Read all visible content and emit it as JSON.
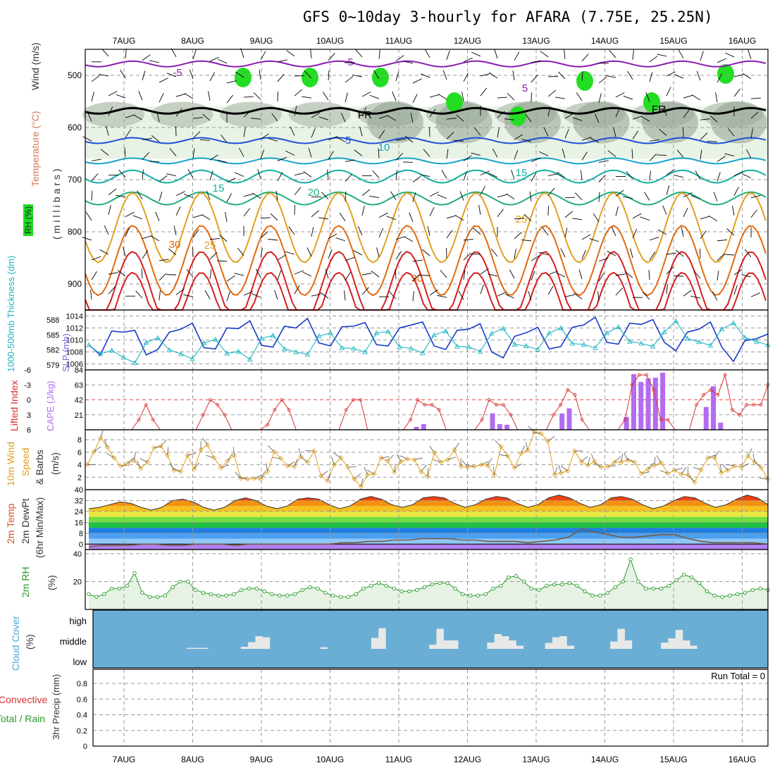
{
  "title": "GFS 0~10day 3-hourly for AFARA (7.75E, 25.25N)",
  "dates": [
    "7AUG",
    "8AUG",
    "9AUG",
    "10AUG",
    "11AUG",
    "12AUG",
    "13AUG",
    "14AUG",
    "15AUG",
    "16AUG"
  ],
  "colors": {
    "wind_barb": "#000000",
    "temp_neg": "#8a1bb0",
    "freezing": "#000000",
    "temp_5": "#1f4fd8",
    "temp_10": "#19a3c8",
    "temp_15": "#11b0a0",
    "temp_20": "#1fae7a",
    "temp_25": "#e0a020",
    "temp_30": "#e06a10",
    "temp_hot": "#d62020",
    "rh_light": "#e8f3e6",
    "rh_mid": "#c0ccbe",
    "rh_dark": "#90a090",
    "rh_sat": "#22dd22",
    "slp": "#1a3bc8",
    "thickness": "#1fb5c5",
    "lifted_index": "#d83030",
    "cape": "#b36bf0",
    "wind10": "#e0a020",
    "rh2m": "#2a9a2a",
    "cloud_bg": "#6aaed6",
    "cloud_bar": "#e8e8e8"
  },
  "panels": {
    "upper": {
      "ylabel": "(millibars)",
      "legend": [
        "RH (%)",
        "Temperature (°C)",
        "Wind (m/s)"
      ],
      "contour_labels": [
        "-5",
        "10",
        "30",
        "FR",
        "5",
        "10",
        "15",
        "20",
        "25",
        "30"
      ]
    },
    "slp": {
      "left_label": "1000-500mb Thickness (dm)",
      "right_label": "SLP (mb)"
    },
    "cape": {
      "left_label": "Lifted Index",
      "right_label": "CAPE (J/kg)"
    },
    "wind10": {
      "labels": [
        "10m Wind",
        "Speed",
        "& Barbs"
      ],
      "unit": "(m/s)"
    },
    "temp2m": {
      "labels": [
        "2m Temp",
        "2m DewPt",
        "(6hr Min/Max)"
      ],
      "unit": "(°C)"
    },
    "rh2m": {
      "label": "2m RH",
      "unit": "(%)"
    },
    "cloud": {
      "label": "Cloud Cover",
      "unit": "(%)",
      "levels": [
        "high",
        "middle",
        "low"
      ]
    },
    "precip": {
      "labels": [
        "Total / Rain",
        "Convective"
      ],
      "ylabel": "3hr Precip (mm)",
      "run_total": "Run Total = 0"
    }
  },
  "chart_data": [
    {
      "type": "contour",
      "name": "upper-air",
      "x_range": [
        "6AUG 12Z",
        "16AUG 06Z"
      ],
      "ylim_mb": [
        950,
        450
      ],
      "y_ticks": [
        "500",
        "600",
        "700",
        "800",
        "900"
      ],
      "temperature_levels_C": [
        -5,
        0,
        5,
        10,
        15,
        20,
        25,
        30
      ],
      "temperature_lines": [
        {
          "t": -5,
          "mb": 478
        },
        {
          "t": 0,
          "mb": 568
        },
        {
          "t": 5,
          "mb": 625
        },
        {
          "t": 10,
          "mb": 664
        },
        {
          "t": 15,
          "mb": 694
        },
        {
          "t": 20,
          "mb": 736
        },
        {
          "t": 25,
          "mb": 792
        },
        {
          "t": 30,
          "mb": 855
        },
        {
          "t": 35,
          "mb": 905
        },
        {
          "t": 40,
          "mb": 945
        }
      ],
      "rh_labels": [
        "10",
        "30",
        "50"
      ]
    },
    {
      "type": "line",
      "name": "slp-thickness",
      "slp_ticks": [
        "1006",
        "1008",
        "1010",
        "1012",
        "1014"
      ],
      "slp_ylim": [
        1005,
        1015
      ],
      "thickness_ticks": [
        "579",
        "582",
        "585",
        "588"
      ],
      "thickness_ylim": [
        578,
        590
      ],
      "slp_mb": [
        1009.2,
        1007.5,
        1011.5,
        1011.3,
        1011.6,
        1007.5,
        1008.4,
        1011.3,
        1011.8,
        1012.8,
        1008.7,
        1008.5,
        1012.0,
        1011.9,
        1013.2,
        1009.1,
        1008.8,
        1012.3,
        1012.0,
        1013.6,
        1009.5,
        1009.0,
        1012.2,
        1012.3,
        1012.9,
        1009.2,
        1009.0,
        1012.0,
        1012.5,
        1013.0,
        1009.0,
        1008.4,
        1011.6,
        1011.8,
        1012.7,
        1008.0,
        1007.0,
        1010.6,
        1011.2,
        1012.1,
        1008.5,
        1008.9,
        1012.1,
        1012.5,
        1013.8,
        1009.6,
        1009.3,
        1012.8,
        1012.6,
        1013.4,
        1009.6,
        1008.2,
        1011.3,
        1011.8,
        1013.0,
        1008.8,
        1006.4,
        1009.9,
        1010.2,
        1011.0
      ],
      "thickness_dm": [
        583.0,
        581.2,
        581.9,
        580.5,
        579.4,
        583.5,
        584.4,
        582.0,
        581.2,
        580.2,
        583.4,
        584.1,
        581.3,
        581.7,
        580.1,
        584.3,
        584.9,
        582.2,
        581.6,
        581.1,
        584.8,
        585.4,
        582.4,
        582.3,
        581.6,
        585.4,
        585.7,
        582.6,
        582.3,
        581.4,
        585.0,
        585.8,
        582.7,
        582.6,
        581.7,
        585.3,
        586.3,
        583.1,
        582.8,
        582.1,
        585.4,
        586.4,
        583.3,
        583.1,
        582.4,
        585.4,
        586.6,
        583.7,
        583.3,
        582.7,
        585.6,
        587.8,
        584.3,
        583.6,
        582.9,
        586.2,
        587.4,
        584.5,
        583.7,
        583.0
      ]
    },
    {
      "type": "bar+line",
      "name": "cape-lifted-index",
      "li_ticks": [
        "-6",
        "-3",
        "0",
        "3",
        "6"
      ],
      "li_ylim": [
        -6,
        6
      ],
      "cape_ticks": [
        "21",
        "42",
        "63",
        "84"
      ],
      "cape_ylim": [
        0,
        84
      ],
      "lifted_index": [
        9,
        9,
        9,
        9,
        9,
        9,
        6,
        4,
        1,
        4,
        7,
        8,
        9,
        9,
        9,
        6,
        3,
        0,
        1,
        3,
        9,
        9,
        9,
        9,
        9,
        5,
        2,
        0,
        2,
        6,
        9,
        9,
        9,
        9,
        9,
        6,
        2,
        0,
        0,
        6,
        9,
        9,
        9,
        9,
        9,
        4,
        0,
        1,
        1,
        2,
        9,
        9,
        9,
        9,
        9,
        4,
        0,
        1,
        1,
        3,
        9,
        9,
        9,
        9,
        9,
        3,
        1,
        -2,
        -1,
        4,
        9,
        9,
        9,
        9,
        9,
        4,
        -3,
        -5,
        -5,
        -2,
        4,
        4,
        9,
        9,
        9,
        1,
        -1,
        -2,
        -1,
        -5,
        2,
        3,
        1,
        1,
        1,
        -3
      ],
      "cape": [
        0,
        0,
        0,
        0,
        0,
        0,
        0,
        0,
        0,
        0,
        0,
        0,
        0,
        0,
        0,
        0,
        0,
        0,
        0,
        0,
        0,
        0,
        0,
        0,
        0,
        0,
        0,
        0,
        0,
        0,
        0,
        0,
        0,
        0,
        0,
        0,
        0,
        0,
        0,
        0,
        0,
        0,
        0,
        0,
        0,
        0,
        0,
        0,
        0,
        0,
        0,
        0,
        0,
        0,
        0,
        0,
        0,
        0,
        0,
        0,
        0,
        0,
        0,
        0,
        0,
        0,
        0,
        0,
        0,
        0,
        0,
        0,
        0,
        0,
        0,
        0,
        0,
        0,
        0,
        0,
        0,
        0,
        0,
        0,
        0,
        0,
        0,
        0,
        0,
        0,
        0,
        0,
        0,
        0,
        0,
        0
      ],
      "cape_bars": [
        {
          "t": 44.9,
          "v": 4
        },
        {
          "t": 45.9,
          "v": 8
        },
        {
          "t": 55.4,
          "v": 23
        },
        {
          "t": 56.4,
          "v": 8
        },
        {
          "t": 57.4,
          "v": 7
        },
        {
          "t": 65.0,
          "v": 23
        },
        {
          "t": 66.0,
          "v": 30
        },
        {
          "t": 73.9,
          "v": 18
        },
        {
          "t": 74.9,
          "v": 78
        },
        {
          "t": 75.9,
          "v": 67
        },
        {
          "t": 76.9,
          "v": 72
        },
        {
          "t": 77.9,
          "v": 73
        },
        {
          "t": 78.9,
          "v": 80
        },
        {
          "t": 84.9,
          "v": 32
        },
        {
          "t": 85.9,
          "v": 61
        },
        {
          "t": 86.9,
          "v": 10
        }
      ]
    },
    {
      "type": "line",
      "name": "10m-wind-speed",
      "ticks": [
        "2",
        "4",
        "6",
        "8"
      ],
      "ylim": [
        0,
        9.6
      ],
      "speed_ms": [
        4.0,
        6.1,
        8.3,
        6.8,
        5.1,
        3.8,
        4.2,
        4.7,
        3.4,
        4.4,
        6.7,
        7.0,
        5.5,
        3.1,
        2.9,
        5.5,
        3.3,
        6.4,
        7.2,
        5.1,
        3.5,
        4.6,
        5.5,
        1.8,
        1.7,
        1.8,
        1.7,
        2.9,
        6.1,
        5.0,
        3.8,
        3.7,
        5.3,
        4.4,
        6.2,
        2.2,
        1.4,
        4.0,
        5.1,
        3.6,
        1.7,
        0.5,
        2.4,
        2.5,
        5.1,
        4.6,
        2.8,
        4.5,
        4.9,
        4.8,
        2.9,
        2.1,
        5.9,
        4.4,
        4.8,
        6.4,
        3.7,
        3.6,
        3.7,
        4.0,
        3.9,
        2.3,
        6.9,
        5.4,
        3.5,
        5.8,
        6.3,
        9.3,
        9.0,
        7.8,
        2.4,
        2.7,
        3.0,
        6.2,
        4.5,
        3.9,
        4.5,
        3.6,
        3.7,
        4.4,
        4.4,
        4.7,
        4.4,
        2.6,
        3.3,
        3.9,
        4.3,
        2.6,
        3.1,
        2.5,
        2.3,
        1.2,
        3.2,
        5.1,
        5.1,
        2.7,
        3.1,
        3.8,
        3.6,
        5.4,
        4.4,
        3.5,
        1.7
      ]
    },
    {
      "type": "area",
      "name": "2m-temp-dewpoint",
      "ticks": [
        "0",
        "8",
        "16",
        "24",
        "32",
        "40"
      ],
      "ylim": [
        -4,
        40
      ],
      "temp_C": [
        26,
        27,
        29,
        31,
        30,
        27,
        25,
        27,
        32,
        33,
        31,
        27,
        25,
        27,
        32,
        34,
        32,
        28,
        26,
        28,
        33,
        34,
        33,
        29,
        26,
        28,
        33,
        35,
        33,
        29,
        27,
        29,
        34,
        35,
        34,
        30,
        27,
        29,
        33,
        35,
        34,
        30,
        27,
        29,
        34,
        36,
        34,
        30,
        27,
        29,
        34,
        35,
        33,
        29,
        26,
        28,
        32,
        35,
        34,
        30,
        27,
        29,
        33,
        36,
        34,
        29
      ],
      "dew_C": [
        -2,
        -1,
        -1,
        -1,
        0,
        0,
        -1,
        -1,
        0,
        0,
        0,
        -1,
        0,
        0,
        0,
        0,
        0,
        0,
        0,
        1,
        1,
        2,
        2,
        3,
        3,
        4,
        4,
        4,
        3,
        3,
        2,
        2,
        2,
        1,
        2,
        3,
        5,
        11,
        9,
        7,
        5,
        5,
        6,
        7,
        7,
        4,
        2,
        1,
        1,
        1,
        1,
        0
      ]
    },
    {
      "type": "area",
      "name": "2m-rh",
      "ticks": [
        "20",
        "40"
      ],
      "ylim": [
        0,
        43
      ],
      "rh_pct": [
        11,
        9,
        11,
        15,
        15,
        17,
        26,
        12,
        9,
        9,
        10,
        16,
        20,
        20,
        14,
        12,
        11,
        10,
        10,
        11,
        14,
        15,
        15,
        13,
        11,
        10,
        10,
        11,
        14,
        16,
        15,
        12,
        10,
        9,
        9,
        11,
        15,
        17,
        19,
        17,
        15,
        13,
        13,
        14,
        16,
        18,
        19,
        19,
        15,
        11,
        10,
        10,
        11,
        15,
        17,
        23,
        24,
        20,
        15,
        14,
        17,
        18,
        18,
        19,
        17,
        13,
        10,
        10,
        12,
        16,
        20,
        36,
        20,
        15,
        15,
        15,
        17,
        21,
        25,
        23,
        19,
        13,
        10,
        9,
        10,
        11,
        12,
        14,
        15,
        14
      ],
      "rh_sampling_hours": 3
    },
    {
      "type": "bar",
      "name": "cloud-cover",
      "categories": [
        "high",
        "middle",
        "low"
      ],
      "columns": [
        {
          "t": 13.5,
          "v": 0.05
        },
        {
          "t": 14.5,
          "v": 0.05
        },
        {
          "t": 15.5,
          "v": 0.05
        },
        {
          "t": 21.0,
          "v": 0.1
        },
        {
          "t": 22.0,
          "v": 0.32
        },
        {
          "t": 23.0,
          "v": 0.6
        },
        {
          "t": 24.0,
          "v": 0.55
        },
        {
          "t": 32.0,
          "v": 0.08
        },
        {
          "t": 39.0,
          "v": 0.52
        },
        {
          "t": 40.0,
          "v": 0.98
        },
        {
          "t": 47.0,
          "v": 0.2
        },
        {
          "t": 48.0,
          "v": 0.95
        },
        {
          "t": 49.0,
          "v": 0.4
        },
        {
          "t": 50.0,
          "v": 0.4
        },
        {
          "t": 55.0,
          "v": 0.3
        },
        {
          "t": 56.0,
          "v": 0.7
        },
        {
          "t": 57.0,
          "v": 0.6
        },
        {
          "t": 58.0,
          "v": 0.4
        },
        {
          "t": 59.0,
          "v": 0.15
        },
        {
          "t": 63.0,
          "v": 0.28
        },
        {
          "t": 64.0,
          "v": 0.55
        },
        {
          "t": 65.0,
          "v": 0.6
        },
        {
          "t": 66.0,
          "v": 0.15
        },
        {
          "t": 72.0,
          "v": 0.35
        },
        {
          "t": 73.0,
          "v": 0.95
        },
        {
          "t": 74.0,
          "v": 0.4
        },
        {
          "t": 79.0,
          "v": 0.3
        },
        {
          "t": 80.0,
          "v": 0.5
        },
        {
          "t": 81.0,
          "v": 0.9
        },
        {
          "t": 82.0,
          "v": 0.4
        },
        {
          "t": 83.0,
          "v": 0.15
        }
      ]
    },
    {
      "type": "line",
      "name": "3hr-precip",
      "ticks": [
        "0",
        "0.2",
        "0.4",
        "0.6",
        "0.8"
      ],
      "ylim": [
        0,
        0.98
      ],
      "values": []
    }
  ]
}
